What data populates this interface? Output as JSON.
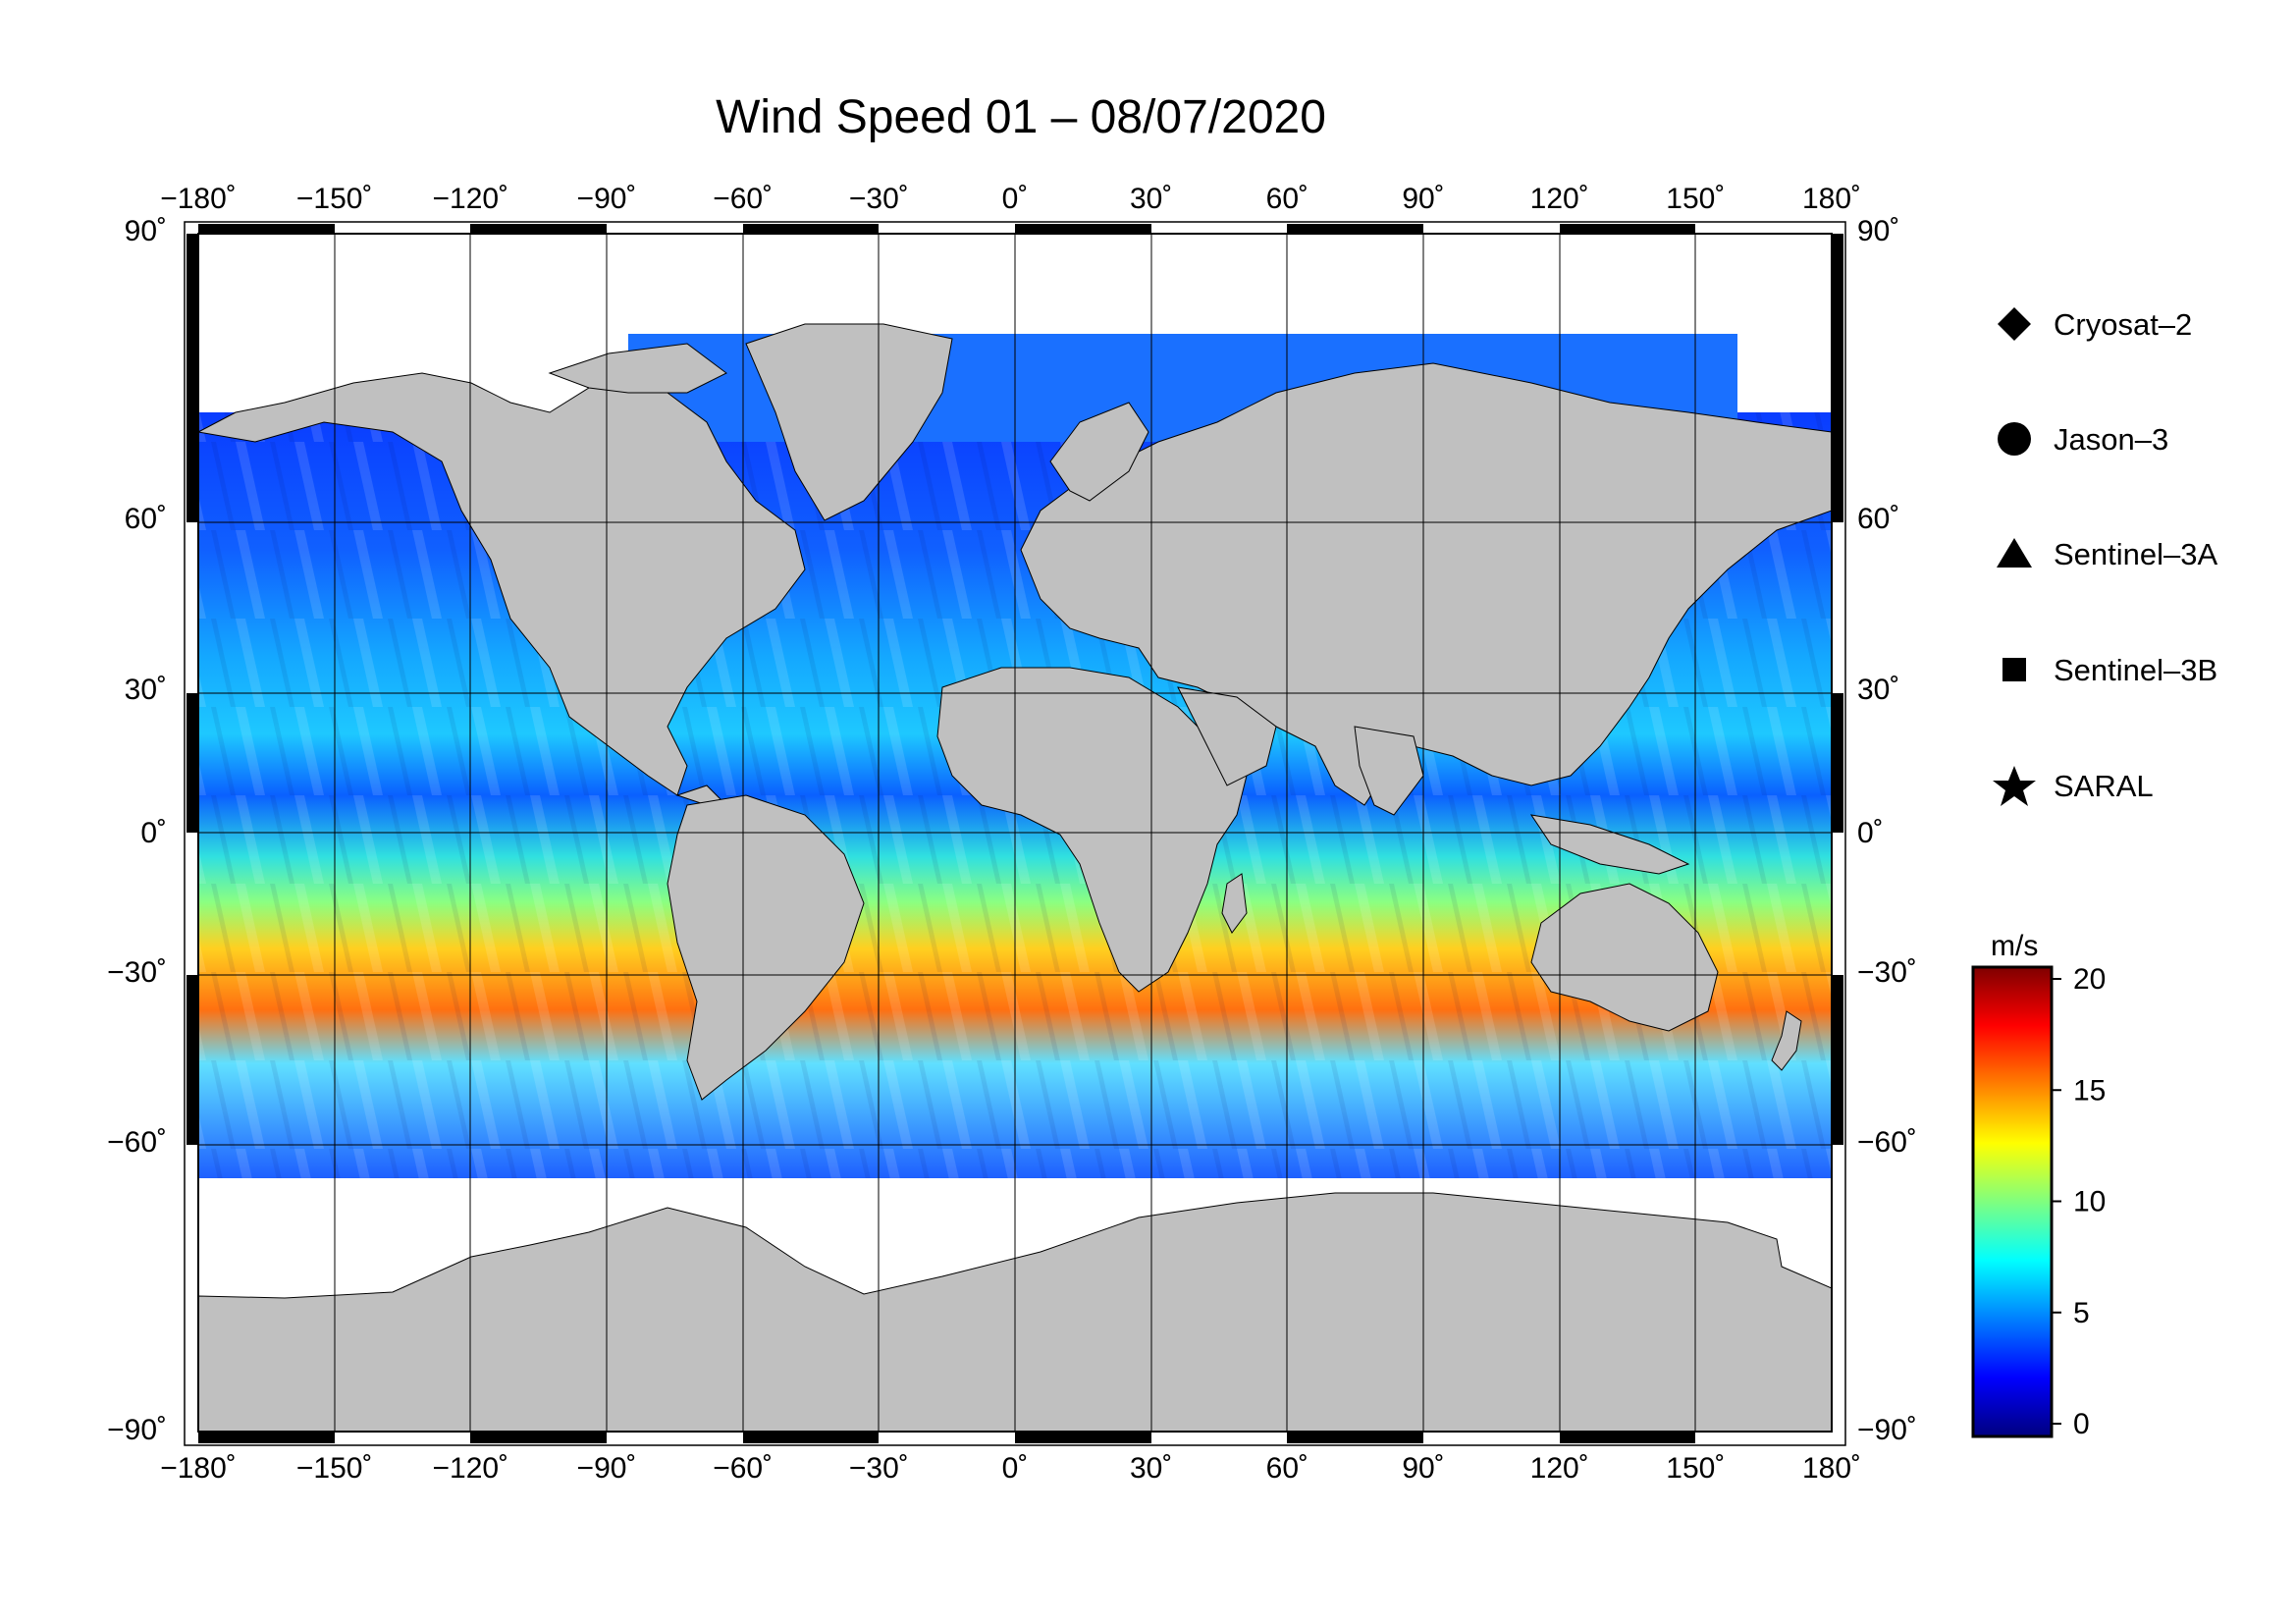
{
  "title": "Wind Speed 01 – 08/07/2020",
  "map": {
    "projection": "equirectangular",
    "lon_range": [
      -180,
      180
    ],
    "lat_range": [
      -90,
      90
    ],
    "lon_ticks": [
      "−180˚",
      "−150˚",
      "−120˚",
      "−90˚",
      "−60˚",
      "−30˚",
      "0˚",
      "30˚",
      "60˚",
      "90˚",
      "120˚",
      "150˚",
      "180˚"
    ],
    "lat_ticks": [
      "90˚",
      "60˚",
      "30˚",
      "0˚",
      "−30˚",
      "−60˚",
      "−90˚"
    ],
    "land_color": "#c0c0c0",
    "ice_color": "#ffffff",
    "frame_color": "#000000"
  },
  "legend": {
    "items": [
      {
        "label": "Cryosat–2",
        "marker": "diamond"
      },
      {
        "label": "Jason–3",
        "marker": "circle"
      },
      {
        "label": "Sentinel–3A",
        "marker": "triangle"
      },
      {
        "label": "Sentinel–3B",
        "marker": "square"
      },
      {
        "label": "SARAL",
        "marker": "star"
      }
    ]
  },
  "colorbar": {
    "unit": "m/s",
    "min": 0,
    "max": 20,
    "ticks": [
      "20",
      "15",
      "10",
      "5",
      "0"
    ],
    "colormap": [
      "#00007f",
      "#0000ff",
      "#007fff",
      "#00ffff",
      "#7fff7f",
      "#ffff00",
      "#ff7f00",
      "#ff0000",
      "#7f0000"
    ]
  }
}
